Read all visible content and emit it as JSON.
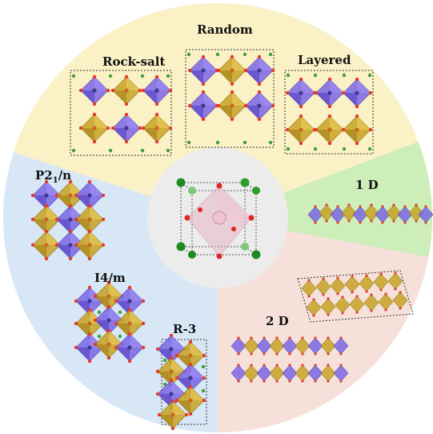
{
  "labels": {
    "random": "Random",
    "rock_salt": "Rock-salt",
    "layered": "Layered",
    "p21n_main": "P2",
    "p21n_sub": "1",
    "p21n_tail": "/n",
    "i4m": "I4/m",
    "r3": "R-3",
    "one_d": "1 D",
    "two_d": "2 D"
  },
  "colors": {
    "sector_random": "#fbf1c6",
    "sector_symmetry": "#d7e7f6",
    "sector_1d": "#cdeeb8",
    "sector_2d": "#f6e1da",
    "center_disc": "#ececec",
    "octa_purple": "#7b66e6",
    "octa_gold": "#c9a52a",
    "oxygen": "#e53b2b",
    "a_site": "#3aa13a",
    "b_site": "#e9a9c2"
  },
  "icons": [
    "perovskite-unit-cell-icon",
    "octahedron-icon"
  ]
}
